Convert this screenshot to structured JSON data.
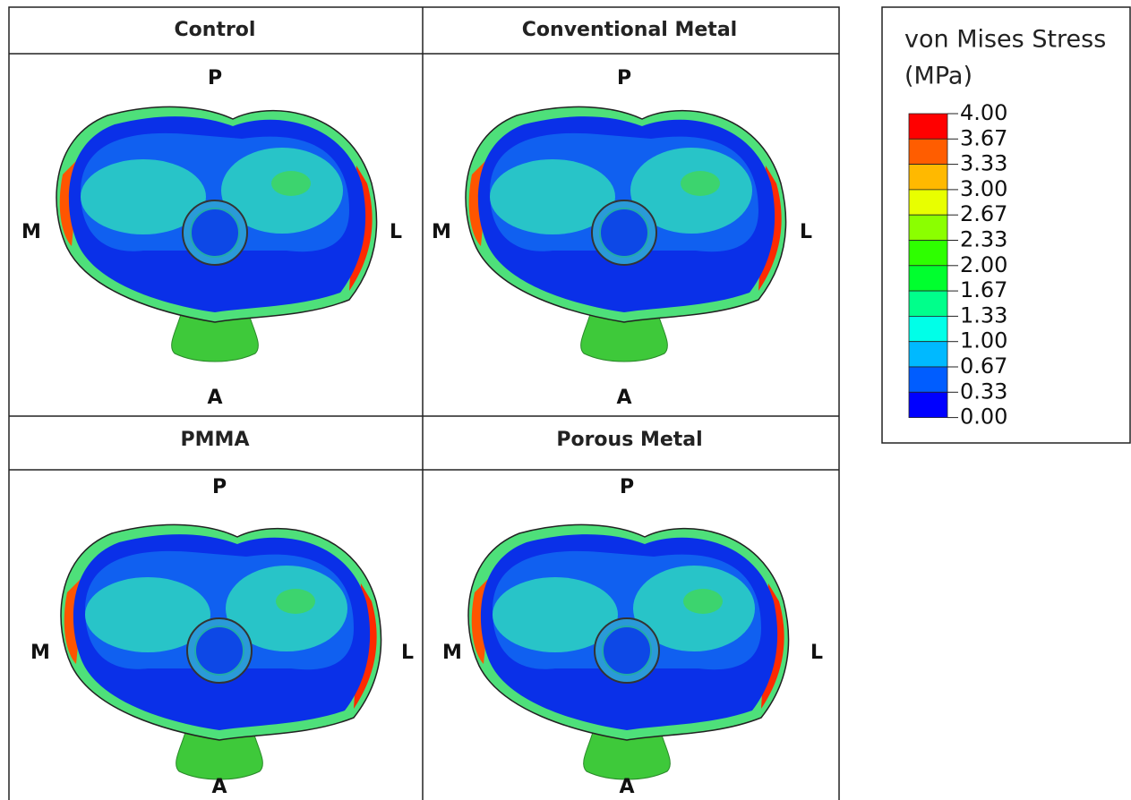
{
  "panels": [
    {
      "title": "Control",
      "posterior": "P",
      "anterior": "A",
      "medial": "M",
      "lateral": "L"
    },
    {
      "title": "Conventional Metal",
      "posterior": "P",
      "anterior": "A",
      "medial": "M",
      "lateral": "L"
    },
    {
      "title": "PMMA",
      "posterior": "P",
      "anterior": "A",
      "medial": "M",
      "lateral": "L"
    },
    {
      "title": "Porous Metal",
      "posterior": "P",
      "anterior": "A",
      "medial": "M",
      "lateral": "L"
    }
  ],
  "legend": {
    "title": "von Mises Stress",
    "unit": "(MPa)",
    "labels": [
      "4.00",
      "3.67",
      "3.33",
      "3.00",
      "2.67",
      "2.33",
      "2.00",
      "1.67",
      "1.33",
      "1.00",
      "0.67",
      "0.33",
      "0.00"
    ]
  }
}
